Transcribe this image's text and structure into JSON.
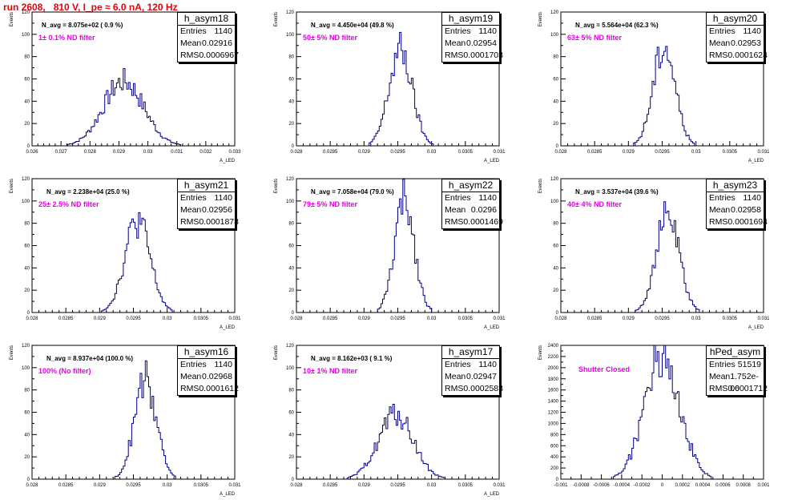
{
  "run_title": "run 2608,   810 V, I_pe ≈ 6.0 nA, 120 Hz",
  "chart_data": [
    {
      "type": "histogram",
      "name": "h_asym18",
      "ylabel": "Events",
      "xlabel": "A_LED",
      "xlim": [
        0.026,
        0.033
      ],
      "ylim": [
        0,
        120
      ],
      "xticks": [
        0.026,
        0.027,
        0.028,
        0.029,
        0.03,
        0.031,
        0.032,
        0.033
      ],
      "xtick_labels": [
        "0.026",
        "0.027",
        "0.028",
        "0.029",
        "0.03",
        "0.031",
        "0.032",
        "0.033"
      ],
      "yticks": [
        0,
        20,
        40,
        60,
        80,
        100,
        120
      ],
      "mean": 0.02916,
      "rms": 0.0006967,
      "stats": {
        "entries": "1140",
        "mean": "0.02916",
        "rms": "0.0006967"
      },
      "n_avg": "N_avg = 8.075e+02 ( 0.9 %)",
      "filter": "1± 0.1% ND filter",
      "peak": 58
    },
    {
      "type": "histogram",
      "name": "h_asym19",
      "ylabel": "Events",
      "xlabel": "A_LED",
      "xlim": [
        0.028,
        0.031
      ],
      "ylim": [
        0,
        120
      ],
      "xticks": [
        0.028,
        0.0285,
        0.029,
        0.0295,
        0.03,
        0.0305,
        0.031
      ],
      "xtick_labels": [
        "0.028",
        "0.0285",
        "0.029",
        "0.0295",
        "0.03",
        "0.0305",
        "0.031"
      ],
      "yticks": [
        0,
        20,
        40,
        60,
        80,
        100,
        120
      ],
      "mean": 0.02954,
      "rms": 0.0001703,
      "stats": {
        "entries": "1140",
        "mean": "0.02954",
        "rms": "0.0001703"
      },
      "n_avg": "N_avg = 4.450e+04 (49.8 %)",
      "filter": "50± 5% ND filter",
      "peak": 86
    },
    {
      "type": "histogram",
      "name": "h_asym20",
      "ylabel": "Events",
      "xlabel": "A_LED",
      "xlim": [
        0.028,
        0.031
      ],
      "ylim": [
        0,
        120
      ],
      "xticks": [
        0.028,
        0.0285,
        0.029,
        0.0295,
        0.03,
        0.0305,
        0.031
      ],
      "xtick_labels": [
        "0.028",
        "0.0285",
        "0.029",
        "0.0295",
        "0.03",
        "0.0305",
        "0.031"
      ],
      "yticks": [
        0,
        20,
        40,
        60,
        80,
        100,
        120
      ],
      "mean": 0.02953,
      "rms": 0.0001624,
      "stats": {
        "entries": "1140",
        "mean": "0.02953",
        "rms": "0.0001624"
      },
      "n_avg": "N_avg = 5.564e+04 (62.3 %)",
      "filter": "63± 5% ND filter",
      "peak": 90
    },
    {
      "type": "histogram",
      "name": "h_asym21",
      "ylabel": "Events",
      "xlabel": "A_LED",
      "xlim": [
        0.028,
        0.031
      ],
      "ylim": [
        0,
        120
      ],
      "xticks": [
        0.028,
        0.0285,
        0.029,
        0.0295,
        0.03,
        0.0305,
        0.031
      ],
      "xtick_labels": [
        "0.028",
        "0.0285",
        "0.029",
        "0.0295",
        "0.03",
        "0.0305",
        "0.031"
      ],
      "yticks": [
        0,
        20,
        40,
        60,
        80,
        100,
        120
      ],
      "mean": 0.02956,
      "rms": 0.0001873,
      "stats": {
        "entries": "1140",
        "mean": "0.02956",
        "rms": "0.0001873"
      },
      "n_avg": "N_avg = 2.238e+04 (25.0 %)",
      "filter": "25± 2.5% ND filter",
      "peak": 82
    },
    {
      "type": "histogram",
      "name": "h_asym22",
      "ylabel": "Events",
      "xlabel": "A_LED",
      "xlim": [
        0.028,
        0.031
      ],
      "ylim": [
        0,
        120
      ],
      "xticks": [
        0.028,
        0.0285,
        0.029,
        0.0295,
        0.03,
        0.0305,
        0.031
      ],
      "xtick_labels": [
        "0.028",
        "0.0285",
        "0.029",
        "0.0295",
        "0.03",
        "0.0305",
        "0.031"
      ],
      "yticks": [
        0,
        20,
        40,
        60,
        80,
        100,
        120
      ],
      "mean": 0.0296,
      "rms": 0.0001469,
      "stats": {
        "entries": "1140",
        "mean": "0.0296",
        "rms": "0.0001469"
      },
      "n_avg": "N_avg = 7.058e+04 (79.0 %)",
      "filter": "79± 5% ND filter",
      "peak": 100
    },
    {
      "type": "histogram",
      "name": "h_asym23",
      "ylabel": "Events",
      "xlabel": "A_LED",
      "xlim": [
        0.028,
        0.031
      ],
      "ylim": [
        0,
        120
      ],
      "xticks": [
        0.028,
        0.0285,
        0.029,
        0.0295,
        0.03,
        0.0305,
        0.031
      ],
      "xtick_labels": [
        "0.028",
        "0.0285",
        "0.029",
        "0.0295",
        "0.03",
        "0.0305",
        "0.031"
      ],
      "yticks": [
        0,
        20,
        40,
        60,
        80,
        100,
        120
      ],
      "mean": 0.02958,
      "rms": 0.0001694,
      "stats": {
        "entries": "1140",
        "mean": "0.02958",
        "rms": "0.0001694"
      },
      "n_avg": "N_avg = 3.537e+04 (39.6 %)",
      "filter": "40± 4% ND filter",
      "peak": 88
    },
    {
      "type": "histogram",
      "name": "h_asym16",
      "ylabel": "Events",
      "xlabel": "A_LED",
      "xlim": [
        0.028,
        0.031
      ],
      "ylim": [
        0,
        120
      ],
      "xticks": [
        0.028,
        0.0285,
        0.029,
        0.0295,
        0.03,
        0.0305,
        0.031
      ],
      "xtick_labels": [
        "0.028",
        "0.0285",
        "0.029",
        "0.0295",
        "0.03",
        "0.0305",
        "0.031"
      ],
      "yticks": [
        0,
        20,
        40,
        60,
        80,
        100,
        120
      ],
      "mean": 0.02968,
      "rms": 0.0001612,
      "stats": {
        "entries": "1140",
        "mean": "0.02968",
        "rms": "0.0001612"
      },
      "n_avg": "N_avg = 8.937e+04 (100.0 %)",
      "filter": "100% (No filter)",
      "peak": 90
    },
    {
      "type": "histogram",
      "name": "h_asym17",
      "ylabel": "Events",
      "xlabel": "A_LED",
      "xlim": [
        0.028,
        0.031
      ],
      "ylim": [
        0,
        120
      ],
      "xticks": [
        0.028,
        0.0285,
        0.029,
        0.0295,
        0.03,
        0.0305,
        0.031
      ],
      "xtick_labels": [
        "0.028",
        "0.0285",
        "0.029",
        "0.0295",
        "0.03",
        "0.0305",
        "0.031"
      ],
      "yticks": [
        0,
        20,
        40,
        60,
        80,
        100,
        120
      ],
      "mean": 0.02947,
      "rms": 0.0002583,
      "stats": {
        "entries": "1140",
        "mean": "0.02947",
        "rms": "0.0002583"
      },
      "n_avg": "N_avg = 8.162e+03 ( 9.1 %)",
      "filter": "10± 1% ND filter",
      "peak": 58
    },
    {
      "type": "histogram",
      "name": "hPed_asym",
      "ylabel": "Events",
      "xlabel": "",
      "xlim": [
        -0.001,
        0.001
      ],
      "ylim": [
        0,
        2400
      ],
      "xticks": [
        -0.001,
        -0.0008,
        -0.0006,
        -0.0004,
        -0.0002,
        0,
        0.0002,
        0.0004,
        0.0006,
        0.0008,
        0.001
      ],
      "xtick_labels": [
        "-0.001",
        "-0.0008",
        "-0.0006",
        "-0.0004",
        "-0.0002",
        "0",
        "0.0002",
        "0.0004",
        "0.0006",
        "0.0008",
        "0.001"
      ],
      "yticks": [
        0,
        200,
        400,
        600,
        800,
        1000,
        1200,
        1400,
        1600,
        1800,
        2000,
        2200,
        2400
      ],
      "mean": 1.752e-06,
      "rms": 0.0001712,
      "stats": {
        "entries": "51519",
        "mean": "1.752e-06",
        "rms": "0.0001712"
      },
      "n_avg": "",
      "filter": "Shutter Closed",
      "peak": 2300
    }
  ]
}
